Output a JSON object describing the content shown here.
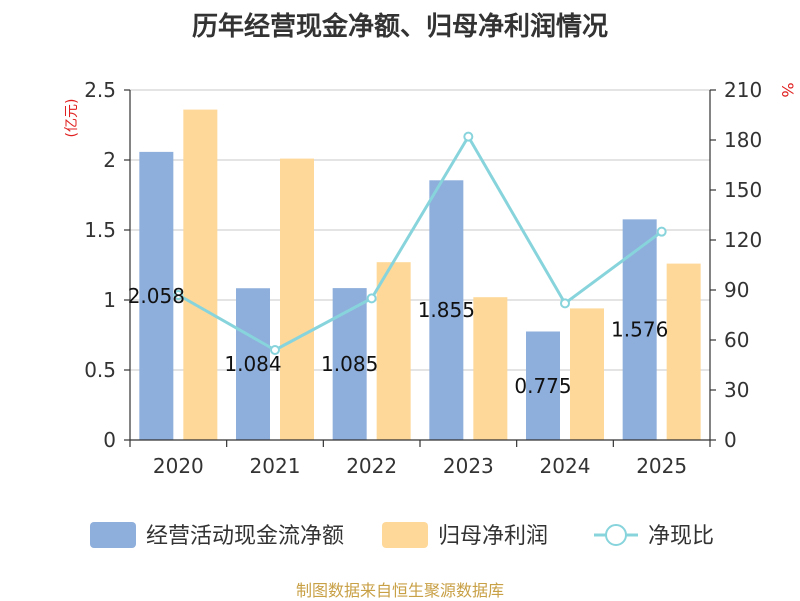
{
  "title": "历年经营现金净额、归母净利润情况",
  "footer": "制图数据来自恒生聚源数据库",
  "chart_data": {
    "type": "bar",
    "categories": [
      "2020",
      "2021",
      "2022",
      "2023",
      "2024",
      "2025"
    ],
    "y_left": {
      "unit": "(亿元)",
      "min": 0,
      "max": 2.5,
      "ticks": [
        "0",
        "0.5",
        "1",
        "1.5",
        "2",
        "2.5"
      ]
    },
    "y_right": {
      "unit": "%",
      "min": 0,
      "max": 210,
      "ticks": [
        "0",
        "30",
        "60",
        "90",
        "120",
        "150",
        "180",
        "210"
      ]
    },
    "grid": true,
    "legend_position": "bottom",
    "series": [
      {
        "name": "经营活动现金流净额",
        "kind": "bar",
        "axis": "left",
        "color": "#8eaedb",
        "values": [
          2.058,
          1.084,
          1.085,
          1.855,
          0.775,
          1.576
        ],
        "labels": [
          "2.058",
          "1.084",
          "1.085",
          "1.855",
          "0.775",
          "1.576"
        ]
      },
      {
        "name": "归母净利润",
        "kind": "bar",
        "axis": "left",
        "color": "#fdd899",
        "values": [
          2.36,
          2.01,
          1.27,
          1.02,
          0.94,
          1.26
        ]
      },
      {
        "name": "净现比",
        "kind": "line",
        "axis": "right",
        "color": "#88d4dc",
        "values": [
          87,
          54,
          85,
          182,
          82,
          125
        ]
      }
    ]
  }
}
